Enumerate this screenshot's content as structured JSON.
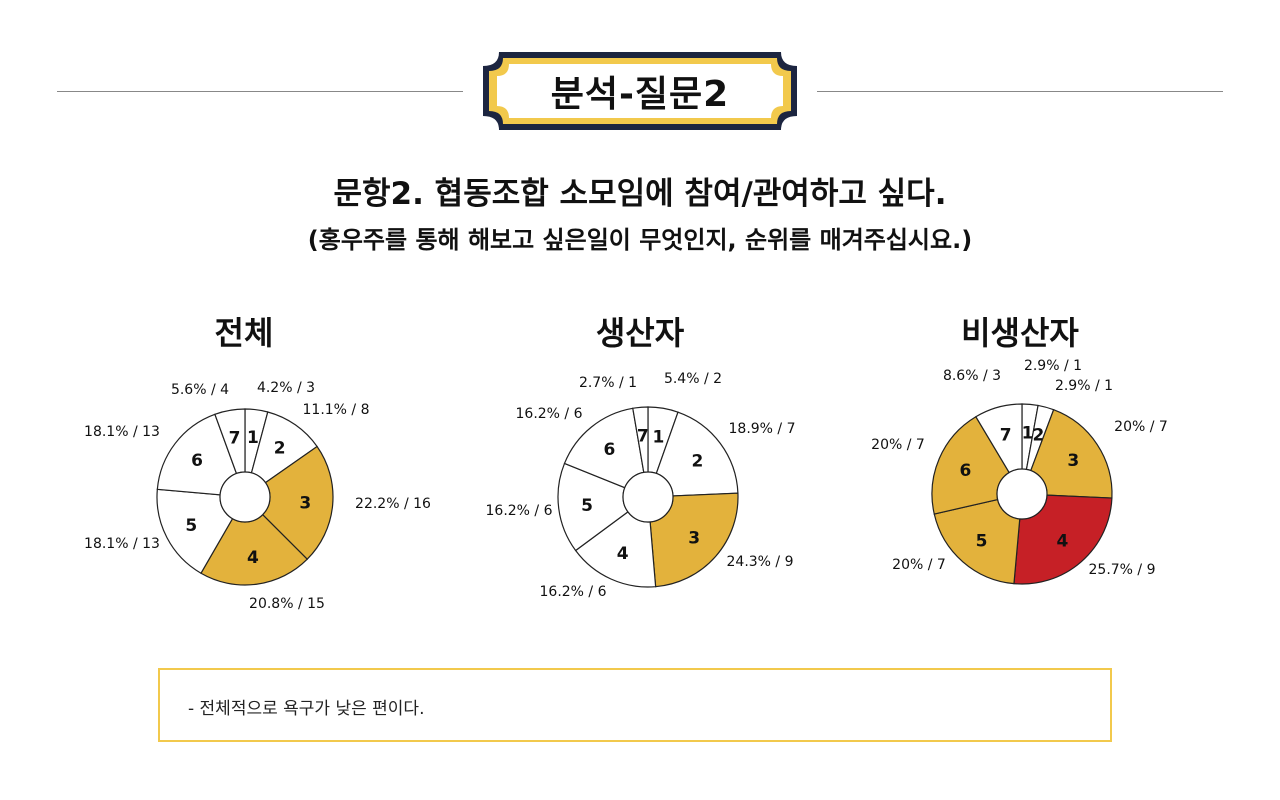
{
  "header": {
    "badge": "분석-질문2"
  },
  "question": {
    "line1": "문항2. 협동조합 소모임에 참여/관여하고 싶다.",
    "line2": "(홍우주를 통해 해보고 싶은일이 무엇인지, 순위를 매겨주십시요.)"
  },
  "colors": {
    "gold": "#e3b23c",
    "red": "#c62026",
    "white": "#ffffff",
    "border_yellow": "#f2c94c",
    "badge_blue": "#1c2540"
  },
  "chart_data": [
    {
      "type": "pie",
      "title": "전체",
      "slices": [
        {
          "label": "1",
          "value": 3,
          "text": "4.2% / 3",
          "color": "#ffffff"
        },
        {
          "label": "2",
          "value": 8,
          "text": "11.1% / 8",
          "color": "#ffffff"
        },
        {
          "label": "3",
          "value": 16,
          "text": "22.2% / 16",
          "color": "#e3b23c"
        },
        {
          "label": "4",
          "value": 15,
          "text": "20.8% / 15",
          "color": "#e3b23c"
        },
        {
          "label": "5",
          "value": 13,
          "text": "18.1% / 13",
          "color": "#ffffff"
        },
        {
          "label": "6",
          "value": 13,
          "text": "18.1% / 13",
          "color": "#ffffff"
        },
        {
          "label": "7",
          "value": 4,
          "text": "5.6% / 4",
          "color": "#ffffff"
        }
      ]
    },
    {
      "type": "pie",
      "title": "생산자",
      "slices": [
        {
          "label": "1",
          "value": 2,
          "text": "5.4% / 2",
          "color": "#ffffff"
        },
        {
          "label": "2",
          "value": 7,
          "text": "18.9% / 7",
          "color": "#ffffff"
        },
        {
          "label": "3",
          "value": 9,
          "text": "24.3% / 9",
          "color": "#e3b23c"
        },
        {
          "label": "4",
          "value": 6,
          "text": "16.2% / 6",
          "color": "#ffffff"
        },
        {
          "label": "5",
          "value": 6,
          "text": "16.2% / 6",
          "color": "#ffffff"
        },
        {
          "label": "6",
          "value": 6,
          "text": "16.2% / 6",
          "color": "#ffffff"
        },
        {
          "label": "7",
          "value": 1,
          "text": "2.7% / 1",
          "color": "#ffffff"
        }
      ]
    },
    {
      "type": "pie",
      "title": "비생산자",
      "slices": [
        {
          "label": "1",
          "value": 1,
          "text": "2.9% / 1",
          "color": "#ffffff"
        },
        {
          "label": "2",
          "value": 1,
          "text": "2.9% / 1",
          "color": "#ffffff"
        },
        {
          "label": "3",
          "value": 7,
          "text": "20% / 7",
          "color": "#e3b23c"
        },
        {
          "label": "4",
          "value": 9,
          "text": "25.7% / 9",
          "color": "#c62026"
        },
        {
          "label": "5",
          "value": 7,
          "text": "20% / 7",
          "color": "#e3b23c"
        },
        {
          "label": "6",
          "value": 7,
          "text": "20% / 7",
          "color": "#e3b23c"
        },
        {
          "label": "7",
          "value": 3,
          "text": "8.6% / 3",
          "color": "#ffffff"
        }
      ]
    }
  ],
  "note": {
    "text": "- 전체적으로 욕구가 낮은 편이다."
  }
}
